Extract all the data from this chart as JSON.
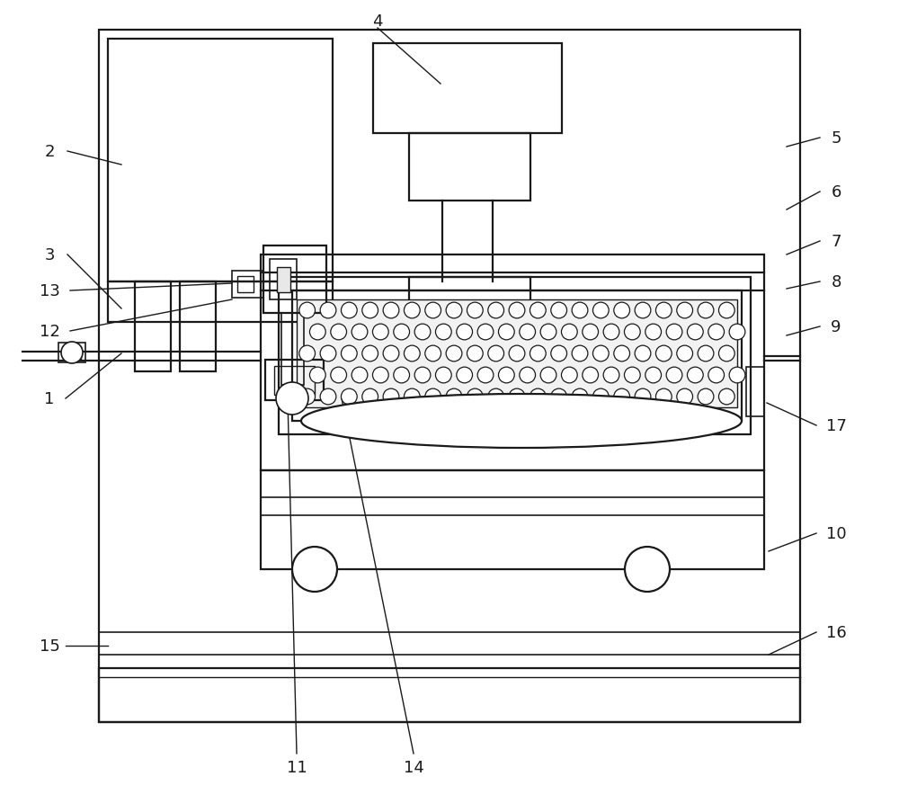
{
  "background_color": "#ffffff",
  "line_color": "#1a1a1a",
  "line_width": 1.6,
  "fig_width": 10.0,
  "fig_height": 9.04
}
